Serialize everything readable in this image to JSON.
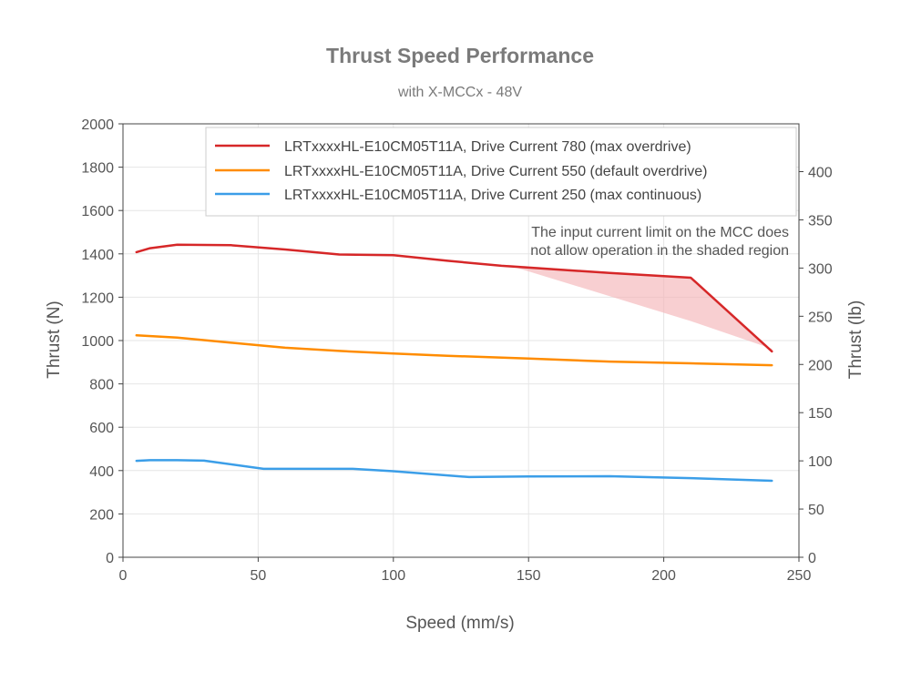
{
  "chart_data": {
    "type": "line",
    "title": "Thrust Speed Performance",
    "subtitle": "with X-MCCx - 48V",
    "xlabel": "Speed (mm/s)",
    "ylabel": "Thrust (N)",
    "y2label": "Thrust (lb)",
    "xlim": [
      0,
      250
    ],
    "ylim": [
      0,
      2000
    ],
    "y2lim": [
      0,
      449.6
    ],
    "xticks": [
      "0",
      "50",
      "100",
      "150",
      "200",
      "250"
    ],
    "yticks": [
      "0",
      "200",
      "400",
      "600",
      "800",
      "1000",
      "1200",
      "1400",
      "1600",
      "1800",
      "2000"
    ],
    "y2ticks": [
      "0",
      "50",
      "100",
      "150",
      "200",
      "250",
      "300",
      "350",
      "400"
    ],
    "grid": true,
    "legend_position": "top-right",
    "series": [
      {
        "name": "LRTxxxxHL-E10CM05T11A, Drive Current 780 (max overdrive)",
        "color": "#d62728",
        "x": [
          5,
          10,
          20,
          40,
          60,
          80,
          100,
          120,
          140,
          160,
          180,
          210,
          240
        ],
        "y": [
          1408,
          1426,
          1442,
          1440,
          1420,
          1397,
          1394,
          1368,
          1345,
          1328,
          1312,
          1290,
          950
        ]
      },
      {
        "name": "LRTxxxxHL-E10CM05T11A, Drive Current 550 (default overdrive)",
        "color": "#ff8c00",
        "x": [
          5,
          20,
          40,
          60,
          80,
          100,
          120,
          150,
          180,
          210,
          240
        ],
        "y": [
          1024,
          1014,
          990,
          967,
          952,
          940,
          930,
          917,
          903,
          895,
          886
        ]
      },
      {
        "name": "LRTxxxxHL-E10CM05T11A, Drive Current 250 (max continuous)",
        "color": "#3b9ee8",
        "x": [
          5,
          10,
          20,
          30,
          52,
          85,
          100,
          128,
          150,
          180,
          210,
          240
        ],
        "y": [
          445,
          448,
          448,
          446,
          408,
          408,
          397,
          370,
          373,
          374,
          365,
          353
        ]
      }
    ],
    "shaded_region": {
      "color": "#f4b6b8",
      "x": [
        142,
        210,
        240
      ],
      "y_upper": [
        1350,
        1290,
        950
      ],
      "y_lower": [
        1350,
        1090,
        962
      ]
    },
    "annotation": {
      "line1": "The input current limit on the MCC does",
      "line2": "not allow operation in the shaded region"
    }
  }
}
